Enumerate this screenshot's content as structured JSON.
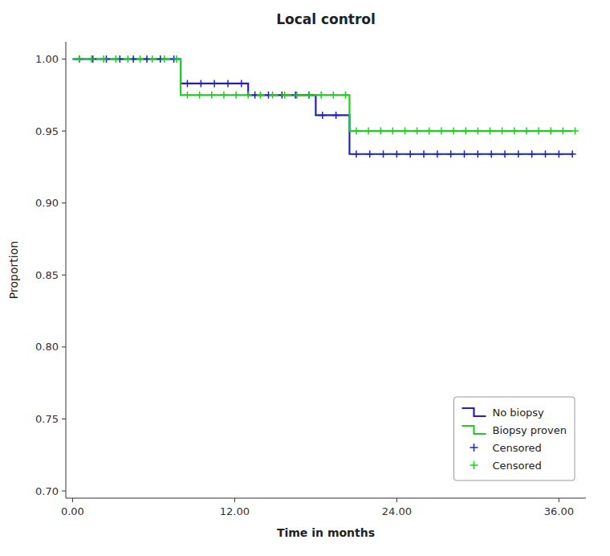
{
  "chart_data": {
    "type": "step",
    "title": "Local control",
    "x_label": "Time in months",
    "y_label": "Proportion",
    "xlim": [
      -0.5,
      38
    ],
    "ylim": [
      0.695,
      1.012
    ],
    "xticks": [
      {
        "value": 0,
        "label": "0.00"
      },
      {
        "value": 12,
        "label": "12.00"
      },
      {
        "value": 24,
        "label": "24.00"
      },
      {
        "value": 36,
        "label": "36.00"
      }
    ],
    "yticks": [
      {
        "value": 0.7,
        "label": "0.70"
      },
      {
        "value": 0.75,
        "label": "0.75"
      },
      {
        "value": 0.8,
        "label": "0.80"
      },
      {
        "value": 0.85,
        "label": "0.85"
      },
      {
        "value": 0.9,
        "label": "0.90"
      },
      {
        "value": 0.95,
        "label": "0.95"
      },
      {
        "value": 1.0,
        "label": "1.00"
      }
    ],
    "grid": false,
    "legend": "lower right",
    "series": [
      {
        "name": "No biopsy",
        "type": "step",
        "color": "#2222bb",
        "x": [
          0,
          8,
          8,
          13,
          13,
          18,
          18,
          20.5,
          20.5,
          37
        ],
        "values": [
          1.0,
          1.0,
          0.983,
          0.983,
          0.975,
          0.975,
          0.961,
          0.961,
          0.934,
          0.934
        ]
      },
      {
        "name": "Biopsy proven",
        "type": "step",
        "color": "#22cc22",
        "x": [
          0,
          8,
          8,
          20.5,
          20.5,
          37
        ],
        "values": [
          1.0,
          1.0,
          0.975,
          0.975,
          0.95,
          0.95
        ]
      },
      {
        "name": "Censored",
        "type": "scatter",
        "marker": "plus",
        "color": "#2222bb",
        "x": [
          0.5,
          1.5,
          2.5,
          3.5,
          4.5,
          5.5,
          6.5,
          7.5,
          8.5,
          9.5,
          10.5,
          11.5,
          12.5,
          13.5,
          14.5,
          15.5,
          16.5,
          17.5,
          18.5,
          19.5,
          21,
          22,
          23,
          24,
          25,
          26,
          27,
          28,
          29,
          30,
          31,
          32,
          33,
          34,
          35,
          36,
          37
        ],
        "values": [
          1.0,
          1.0,
          1.0,
          1.0,
          1.0,
          1.0,
          1.0,
          1.0,
          0.983,
          0.983,
          0.983,
          0.983,
          0.983,
          0.975,
          0.975,
          0.975,
          0.975,
          0.975,
          0.961,
          0.961,
          0.934,
          0.934,
          0.934,
          0.934,
          0.934,
          0.934,
          0.934,
          0.934,
          0.934,
          0.934,
          0.934,
          0.934,
          0.934,
          0.934,
          0.934,
          0.934,
          0.934
        ]
      },
      {
        "name": "Censored",
        "type": "scatter",
        "marker": "plus",
        "color": "#22cc22",
        "x": [
          0.5,
          1.4,
          2.3,
          3.2,
          4.1,
          5.0,
          5.9,
          6.8,
          7.7,
          8.5,
          9.4,
          10.3,
          11.2,
          12.1,
          13.0,
          13.9,
          14.8,
          15.7,
          16.6,
          17.5,
          18.4,
          19.3,
          20.2,
          21,
          21.9,
          22.8,
          23.7,
          24.6,
          25.5,
          26.4,
          27.3,
          28.2,
          29.1,
          30.0,
          30.9,
          31.8,
          32.7,
          33.6,
          34.5,
          35.4,
          36.3,
          37.2
        ],
        "values": [
          1.0,
          1.0,
          1.0,
          1.0,
          1.0,
          1.0,
          1.0,
          1.0,
          1.0,
          0.975,
          0.975,
          0.975,
          0.975,
          0.975,
          0.975,
          0.975,
          0.975,
          0.975,
          0.975,
          0.975,
          0.975,
          0.975,
          0.975,
          0.95,
          0.95,
          0.95,
          0.95,
          0.95,
          0.95,
          0.95,
          0.95,
          0.95,
          0.95,
          0.95,
          0.95,
          0.95,
          0.95,
          0.95,
          0.95,
          0.95,
          0.95,
          0.95
        ]
      }
    ]
  }
}
